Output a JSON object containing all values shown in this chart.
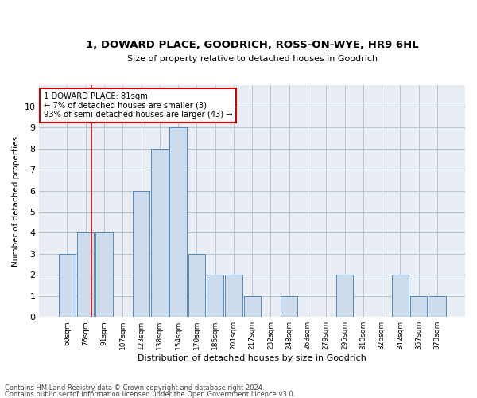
{
  "title": "1, DOWARD PLACE, GOODRICH, ROSS-ON-WYE, HR9 6HL",
  "subtitle": "Size of property relative to detached houses in Goodrich",
  "xlabel": "Distribution of detached houses by size in Goodrich",
  "ylabel": "Number of detached properties",
  "footer_line1": "Contains HM Land Registry data © Crown copyright and database right 2024.",
  "footer_line2": "Contains public sector information licensed under the Open Government Licence v3.0.",
  "bar_labels": [
    "60sqm",
    "76sqm",
    "91sqm",
    "107sqm",
    "123sqm",
    "138sqm",
    "154sqm",
    "170sqm",
    "185sqm",
    "201sqm",
    "217sqm",
    "232sqm",
    "248sqm",
    "263sqm",
    "279sqm",
    "295sqm",
    "310sqm",
    "326sqm",
    "342sqm",
    "357sqm",
    "373sqm"
  ],
  "bar_values": [
    3,
    4,
    4,
    0,
    6,
    8,
    9,
    3,
    2,
    2,
    1,
    0,
    1,
    0,
    0,
    2,
    0,
    0,
    2,
    1,
    1
  ],
  "bar_color": "#ccdcec",
  "bar_edge_color": "#5588bb",
  "ylim": [
    0,
    11
  ],
  "yticks": [
    0,
    1,
    2,
    3,
    4,
    5,
    6,
    7,
    8,
    9,
    10,
    11
  ],
  "annotation_box_text": "1 DOWARD PLACE: 81sqm\n← 7% of detached houses are smaller (3)\n93% of semi-detached houses are larger (43) →",
  "annotation_box_color": "#ffffff",
  "annotation_box_edge_color": "#cc0000",
  "background_color": "#e8eef4",
  "grid_color": "#b0bec8",
  "red_line_x": 1.33
}
